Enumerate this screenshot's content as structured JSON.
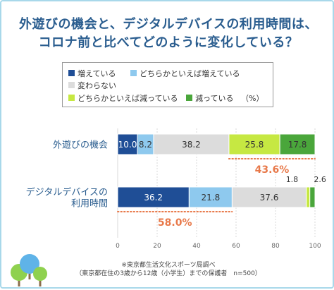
{
  "title_line1": "外遊びの機会と、デジタルデバイスの利用時間は、",
  "title_line2": "コロナ前と比べてどのように変化している？",
  "legend": {
    "items": [
      {
        "label": "増えている",
        "color": "#1f4e96"
      },
      {
        "label": "どちらかといえば増えている",
        "color": "#8ec9ee"
      },
      {
        "label": "変わらない",
        "color": "#dcdcdc"
      },
      {
        "label": "どちらかといえば減っている",
        "color": "#c6e842"
      },
      {
        "label": "減っている",
        "color": "#4aa63b"
      }
    ],
    "unit": "（%）"
  },
  "chart_data": {
    "type": "bar",
    "orientation": "horizontal-stacked",
    "categories": [
      "外遊びの機会",
      "デジタルデバイスの利用時間"
    ],
    "category_labels": [
      [
        "外遊びの機会"
      ],
      [
        "デジタルデバイスの",
        "利用時間"
      ]
    ],
    "series": [
      {
        "name": "増えている",
        "values": [
          10.0,
          36.2
        ],
        "value_labels": [
          "10.0",
          "36.2"
        ],
        "color": "#1f4e96"
      },
      {
        "name": "どちらかといえば増えている",
        "values": [
          8.2,
          21.8
        ],
        "value_labels": [
          "8.2",
          "21.8"
        ],
        "color": "#8ec9ee"
      },
      {
        "name": "変わらない",
        "values": [
          38.2,
          37.6
        ],
        "value_labels": [
          "38.2",
          "37.6"
        ],
        "color": "#dcdcdc"
      },
      {
        "name": "どちらかといえば減っている",
        "values": [
          25.8,
          1.8
        ],
        "value_labels": [
          "25.8",
          "1.8"
        ],
        "color": "#c6e842"
      },
      {
        "name": "減っている",
        "values": [
          17.8,
          2.6
        ],
        "value_labels": [
          "17.8",
          "2.6"
        ],
        "color": "#4aa63b"
      }
    ],
    "xlim": [
      0,
      100
    ],
    "x_ticks": [
      0,
      20,
      40,
      60,
      80,
      100
    ],
    "annotations": [
      {
        "text": "43.6%",
        "category": 0,
        "from": 56.4,
        "to": 100
      },
      {
        "text": "58.0%",
        "category": 1,
        "from": 0,
        "to": 58.0
      }
    ]
  },
  "footnote_line1": "※東京都生活文化スポーツ局調べ",
  "footnote_line2": "（東京都在住の3歳から12歳（小学生）までの保護者　n=500）"
}
